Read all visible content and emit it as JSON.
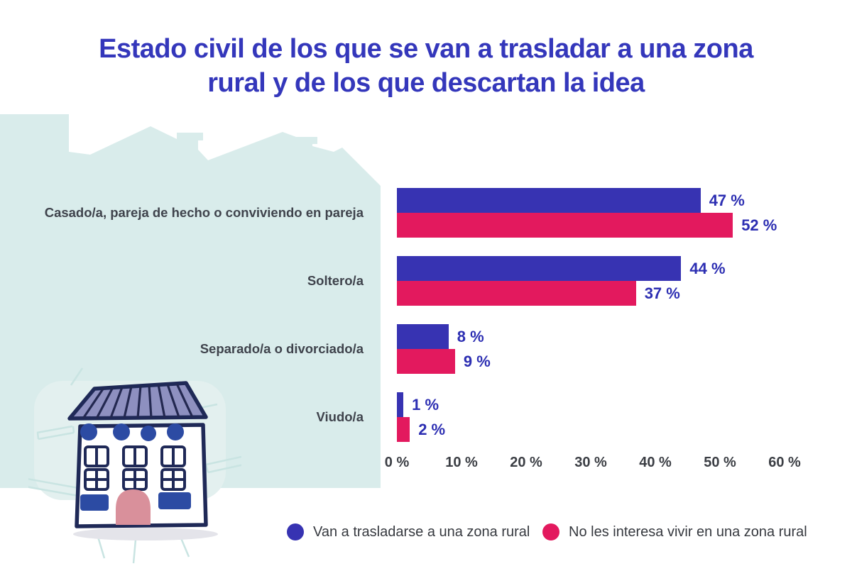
{
  "title": "Estado civil de los que se van a trasladar a una zona rural y de los que descartan la idea",
  "chart_data": {
    "type": "bar",
    "orientation": "horizontal",
    "title": "Estado civil de los que se van a trasladar a una zona rural y de los que descartan la idea",
    "categories": [
      "Casado/a, pareja de hecho o conviviendo en pareja",
      "Soltero/a",
      "Separado/a o divorciado/a",
      "Viudo/a"
    ],
    "series": [
      {
        "name": "Van a trasladarse a una zona rural",
        "color": "#3733b2",
        "values": [
          47,
          44,
          8,
          1
        ],
        "labels": [
          "47 %",
          "44 %",
          "8 %",
          "1 %"
        ]
      },
      {
        "name": "No les interesa vivir en una zona rural",
        "color": "#e3195e",
        "values": [
          52,
          37,
          9,
          2
        ],
        "labels": [
          "52 %",
          "37 %",
          "9 %",
          "2 %"
        ]
      }
    ],
    "x_axis": {
      "range": [
        0,
        60
      ],
      "ticks": [
        0,
        10,
        20,
        30,
        40,
        50,
        60
      ],
      "tick_labels": [
        "0 %",
        "10 %",
        "20 %",
        "30 %",
        "40 %",
        "50 %",
        "60 %"
      ]
    },
    "grid": false,
    "legend_position": "bottom",
    "value_label_color": "#2c2eb2"
  },
  "colors": {
    "title_blue": "#3437bb",
    "bar_blue": "#3733b2",
    "bar_pink": "#e3195e",
    "background_teal": "#d9eceb",
    "label_gray": "#3f434c"
  },
  "illustration": {
    "skyline_icon": "houses-skyline-silhouette",
    "house_icon": "hand-drawn-apartment-house"
  }
}
